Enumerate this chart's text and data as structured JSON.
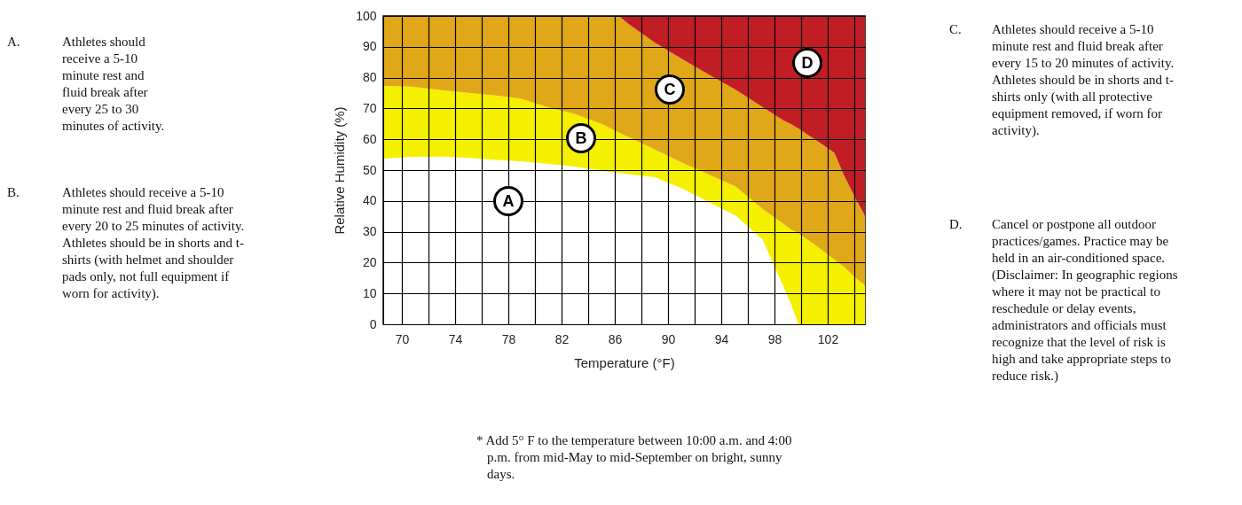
{
  "chart_data": {
    "type": "area",
    "stacked": true,
    "xlabel": "Temperature (°F)",
    "ylabel": "Relative Humidity (%)",
    "xlim": [
      68.6,
      104.8
    ],
    "ylim": [
      0,
      100
    ],
    "xticks": [
      70,
      {
        "value": 72,
        "label": null
      },
      74,
      {
        "value": 76,
        "label": null
      },
      78,
      {
        "value": 80,
        "label": null
      },
      82,
      {
        "value": 84,
        "label": null
      },
      86,
      {
        "value": 88,
        "label": null
      },
      90,
      {
        "value": 92,
        "label": null
      },
      94,
      {
        "value": 96,
        "label": null
      },
      98,
      {
        "value": 100,
        "label": null
      },
      102,
      {
        "value": 104,
        "label": null
      }
    ],
    "yticks": [
      0,
      10,
      20,
      30,
      40,
      50,
      60,
      70,
      80,
      90,
      100
    ],
    "grid": true,
    "x": [
      68.6,
      70.7,
      72.8,
      74.9,
      76.9,
      78.9,
      80.9,
      82.9,
      85.0,
      86.3,
      87.0,
      89.0,
      91.1,
      93.1,
      95.1,
      97.1,
      98.7,
      99.2,
      99.8,
      101.2,
      102.5,
      103.2,
      104.1,
      104.8
    ],
    "series": [
      {
        "color": "#ffffff",
        "values": [
          53.7,
          54.3,
          54.4,
          54,
          53.4,
          52.9,
          52.1,
          51.2,
          49.8,
          49.1,
          48.7,
          47.7,
          44,
          39.6,
          35.2,
          27.5,
          12,
          7,
          0,
          0,
          0,
          0,
          0,
          0
        ]
      },
      {
        "color": "#f5f000",
        "values": [
          23.6,
          22.8,
          21.6,
          21.1,
          20.9,
          20.3,
          18.4,
          17.1,
          15.2,
          13.1,
          12.1,
          9,
          8.3,
          8.9,
          9.4,
          9.9,
          20.5,
          23.8,
          29.5,
          25.3,
          21,
          18.7,
          15,
          12.7
        ]
      },
      {
        "color": "#e0a818",
        "values": [
          22.7,
          22.9,
          24,
          24.9,
          25.7,
          26.8,
          29.5,
          31.7,
          35,
          37.8,
          36.7,
          34.7,
          33.6,
          32.4,
          31.4,
          33.1,
          33.5,
          34.2,
          34,
          34.2,
          34.6,
          29.8,
          25.7,
          22.5
        ]
      },
      {
        "color": "#c01e24",
        "values": [
          0,
          0,
          0,
          0,
          0,
          0,
          0,
          0,
          0,
          0,
          2.5,
          8.6,
          14.1,
          19.1,
          24,
          29.5,
          34,
          35,
          36.5,
          40.5,
          44.4,
          51.5,
          59.3,
          64.8
        ]
      }
    ],
    "annotations": [
      "A",
      "B",
      "C",
      "D",
      "A. Athletes should receive a 5-10 minute rest and fluid break after every 25 to 30 minutes of activity.",
      "B. Athletes should receive a 5-10 minute rest and fluid break after every 20 to 25 minutes of activity. Athletes should be in shorts and t-shirts (with helmet and shoulder pads only, not full equipment if worn for activity).",
      "C. Athletes should receive a 5-10 minute rest and fluid break after every 15 to 20 minutes of activity. Athletes should be in shorts and t-shirts only (with all protective equipment removed, if worn for activity).",
      "D. Cancel or postpone all outdoor practices/games. Practice may be held in an air-conditioned space. (Disclaimer: In geographic regions where it may not be practical to reschedule or delay events, administrators and officials must recognize that the level of risk is high and take appropriate steps to reduce risk.)",
      "* Add 5° F to the temperature between 10:00 a.m. and 4:00 p.m. from mid-May to mid-September on bright, sunny days."
    ]
  }
}
